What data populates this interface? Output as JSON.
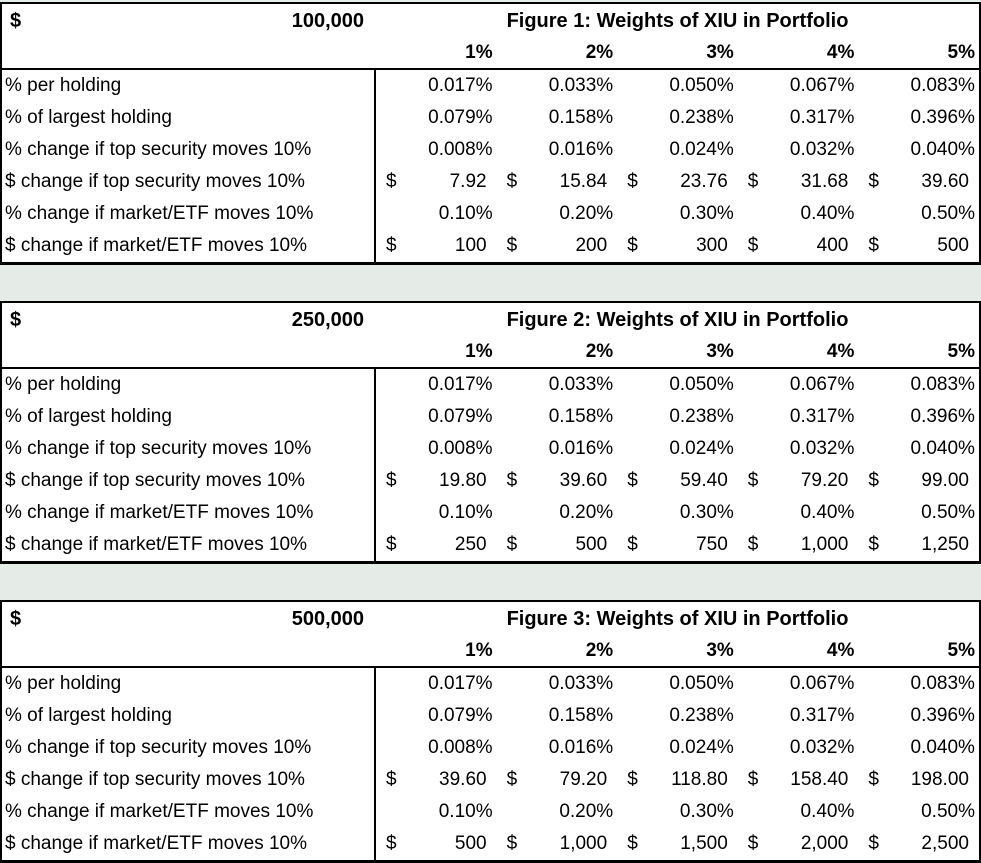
{
  "page": {
    "background_color": "#e5ece7",
    "table_background": "#ffffff",
    "border_color": "#000000",
    "text_color": "#000000"
  },
  "column_headers": [
    "1%",
    "2%",
    "3%",
    "4%",
    "5%"
  ],
  "tables": [
    {
      "currency_symbol": "$",
      "portfolio_value": "100,000",
      "title": "Figure 1: Weights of XIU in Portfolio",
      "rows": [
        {
          "label": "% per holding",
          "type": "percent",
          "cells": [
            "0.017%",
            "0.033%",
            "0.050%",
            "0.067%",
            "0.083%"
          ]
        },
        {
          "label": "% of largest holding",
          "type": "percent",
          "cells": [
            "0.079%",
            "0.158%",
            "0.238%",
            "0.317%",
            "0.396%"
          ]
        },
        {
          "label": "% change if top security moves 10%",
          "type": "percent",
          "cells": [
            "0.008%",
            "0.016%",
            "0.024%",
            "0.032%",
            "0.040%"
          ]
        },
        {
          "label": "$ change if top security moves 10%",
          "type": "currency",
          "currency": "$",
          "cells": [
            "7.92",
            "15.84",
            "23.76",
            "31.68",
            "39.60"
          ]
        },
        {
          "label": "% change if market/ETF moves 10%",
          "type": "percent",
          "cells": [
            "0.10%",
            "0.20%",
            "0.30%",
            "0.40%",
            "0.50%"
          ]
        },
        {
          "label": "$ change if market/ETF moves 10%",
          "type": "currency",
          "currency": "$",
          "cells": [
            "100",
            "200",
            "300",
            "400",
            "500"
          ]
        }
      ]
    },
    {
      "currency_symbol": "$",
      "portfolio_value": "250,000",
      "title": "Figure 2: Weights of XIU in Portfolio",
      "rows": [
        {
          "label": "% per holding",
          "type": "percent",
          "cells": [
            "0.017%",
            "0.033%",
            "0.050%",
            "0.067%",
            "0.083%"
          ]
        },
        {
          "label": "% of largest holding",
          "type": "percent",
          "cells": [
            "0.079%",
            "0.158%",
            "0.238%",
            "0.317%",
            "0.396%"
          ]
        },
        {
          "label": "% change if top security moves 10%",
          "type": "percent",
          "cells": [
            "0.008%",
            "0.016%",
            "0.024%",
            "0.032%",
            "0.040%"
          ]
        },
        {
          "label": "$ change if top security moves 10%",
          "type": "currency",
          "currency": "$",
          "cells": [
            "19.80",
            "39.60",
            "59.40",
            "79.20",
            "99.00"
          ]
        },
        {
          "label": "% change if market/ETF moves 10%",
          "type": "percent",
          "cells": [
            "0.10%",
            "0.20%",
            "0.30%",
            "0.40%",
            "0.50%"
          ]
        },
        {
          "label": "$ change if market/ETF moves 10%",
          "type": "currency",
          "currency": "$",
          "cells": [
            "250",
            "500",
            "750",
            "1,000",
            "1,250"
          ]
        }
      ]
    },
    {
      "currency_symbol": "$",
      "portfolio_value": "500,000",
      "title": "Figure 3: Weights of XIU in Portfolio",
      "rows": [
        {
          "label": "% per holding",
          "type": "percent",
          "cells": [
            "0.017%",
            "0.033%",
            "0.050%",
            "0.067%",
            "0.083%"
          ]
        },
        {
          "label": "% of largest holding",
          "type": "percent",
          "cells": [
            "0.079%",
            "0.158%",
            "0.238%",
            "0.317%",
            "0.396%"
          ]
        },
        {
          "label": "% change if top security moves 10%",
          "type": "percent",
          "cells": [
            "0.008%",
            "0.016%",
            "0.024%",
            "0.032%",
            "0.040%"
          ]
        },
        {
          "label": "$ change if top security moves 10%",
          "type": "currency",
          "currency": "$",
          "cells": [
            "39.60",
            "79.20",
            "118.80",
            "158.40",
            "198.00"
          ]
        },
        {
          "label": "% change if market/ETF moves 10%",
          "type": "percent",
          "cells": [
            "0.10%",
            "0.20%",
            "0.30%",
            "0.40%",
            "0.50%"
          ]
        },
        {
          "label": "$ change if market/ETF moves 10%",
          "type": "currency",
          "currency": "$",
          "cells": [
            "500",
            "1,000",
            "1,500",
            "2,000",
            "2,500"
          ]
        }
      ]
    }
  ]
}
